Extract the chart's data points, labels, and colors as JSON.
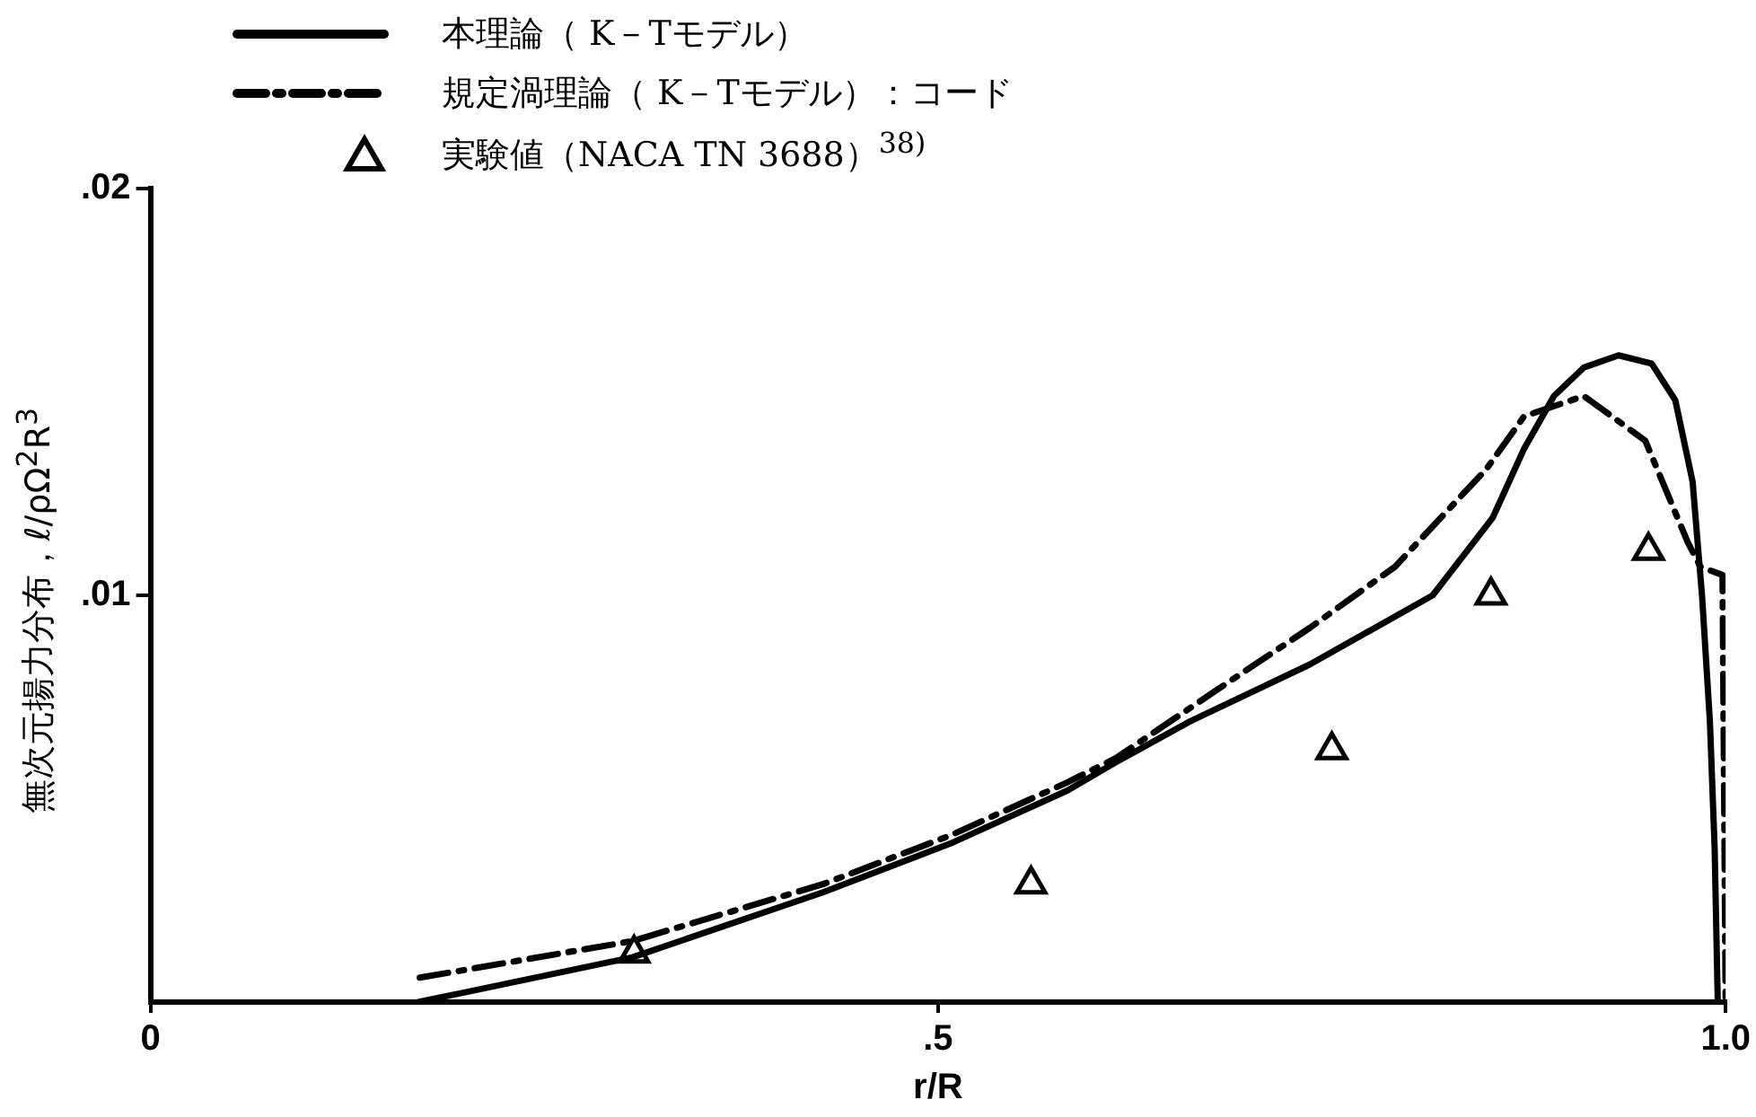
{
  "chart_data": {
    "type": "line",
    "xlabel": "r/R",
    "ylabel": "無次元揚力分布，ℓ/ρΩ$^{2}$R$^{3}$",
    "xlim": [
      0,
      1
    ],
    "xticks": [
      {
        "value": 0,
        "label": "0"
      },
      {
        "value": 0.5,
        "label": ".5"
      },
      {
        "value": 1,
        "label": "1.0"
      }
    ],
    "ylim": [
      0,
      0.02
    ],
    "yticks": [
      {
        "value": 0.01,
        "label": ".01"
      },
      {
        "value": 0.02,
        "label": ".02"
      }
    ],
    "grid": false,
    "legend": "top left",
    "series": [
      {
        "name": "本理論（ K－Tモデル）",
        "color": "#000000",
        "line_style": "solid",
        "marker": "none",
        "x": [
          0.17,
          0.306,
          0.427,
          0.508,
          0.582,
          0.613,
          0.66,
          0.736,
          0.814,
          0.852,
          0.872,
          0.891,
          0.91,
          0.932,
          0.953,
          0.968,
          0.979,
          0.985,
          0.99,
          0.993,
          0.995
        ],
        "values": [
          0,
          0.0011,
          0.0027,
          0.0039,
          0.0052,
          0.0059,
          0.0069,
          0.0083,
          0.01,
          0.0119,
          0.0136,
          0.0149,
          0.0156,
          0.0159,
          0.0157,
          0.0148,
          0.0128,
          0.01,
          0.0069,
          0.0038,
          0
        ]
      },
      {
        "name": "規定渦理論（ K－Tモデル）：コード",
        "color": "#000000",
        "line_style": "dashdot",
        "marker": "none",
        "x": [
          0.171,
          0.306,
          0.427,
          0.508,
          0.582,
          0.613,
          0.678,
          0.736,
          0.79,
          0.848,
          0.872,
          0.91,
          0.949,
          0.976,
          0.984,
          0.998,
          1
        ],
        "values": [
          0.0006,
          0.0015,
          0.0029,
          0.0041,
          0.0054,
          0.006,
          0.0077,
          0.0092,
          0.0107,
          0.0131,
          0.0144,
          0.0149,
          0.0138,
          0.0113,
          0.0107,
          0.0105,
          0
        ]
      },
      {
        "name": "実験値（NACA TN 3688）$^{38)}$",
        "color": "#000000",
        "type": "scatter",
        "marker": "triangle",
        "x": [
          0.307,
          0.559,
          0.75,
          0.851,
          0.951
        ],
        "values": [
          0.0012,
          0.0029,
          0.0062,
          0.01,
          0.0111
        ]
      }
    ]
  }
}
